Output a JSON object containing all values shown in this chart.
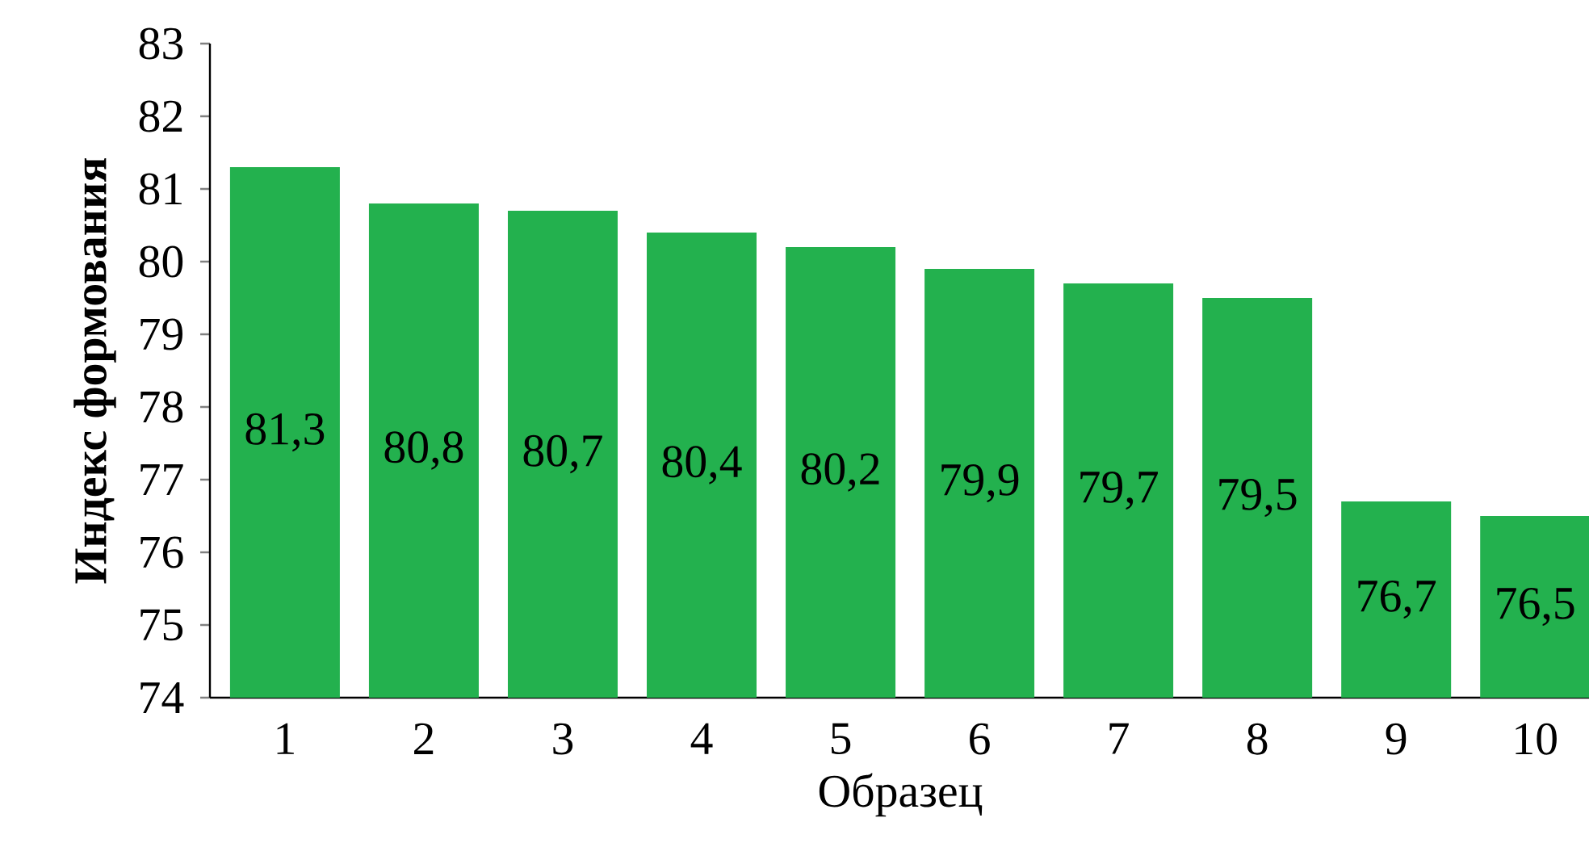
{
  "chart_data": {
    "type": "bar",
    "xlabel": "Образец",
    "ylabel": "Индекс формования",
    "categories": [
      "1",
      "2",
      "3",
      "4",
      "5",
      "6",
      "7",
      "8",
      "9",
      "10"
    ],
    "values": [
      81.3,
      80.8,
      80.7,
      80.4,
      80.2,
      79.9,
      79.7,
      79.5,
      76.7,
      76.5
    ],
    "value_labels": [
      "81,3",
      "80,8",
      "80,7",
      "80,4",
      "80,2",
      "79,9",
      "79,7",
      "79,5",
      "76,7",
      "76,5"
    ],
    "color": "#23b14e",
    "ylim": [
      74,
      83
    ],
    "yticks": [
      74,
      75,
      76,
      77,
      78,
      79,
      80,
      81,
      82,
      83
    ],
    "grid": false
  }
}
